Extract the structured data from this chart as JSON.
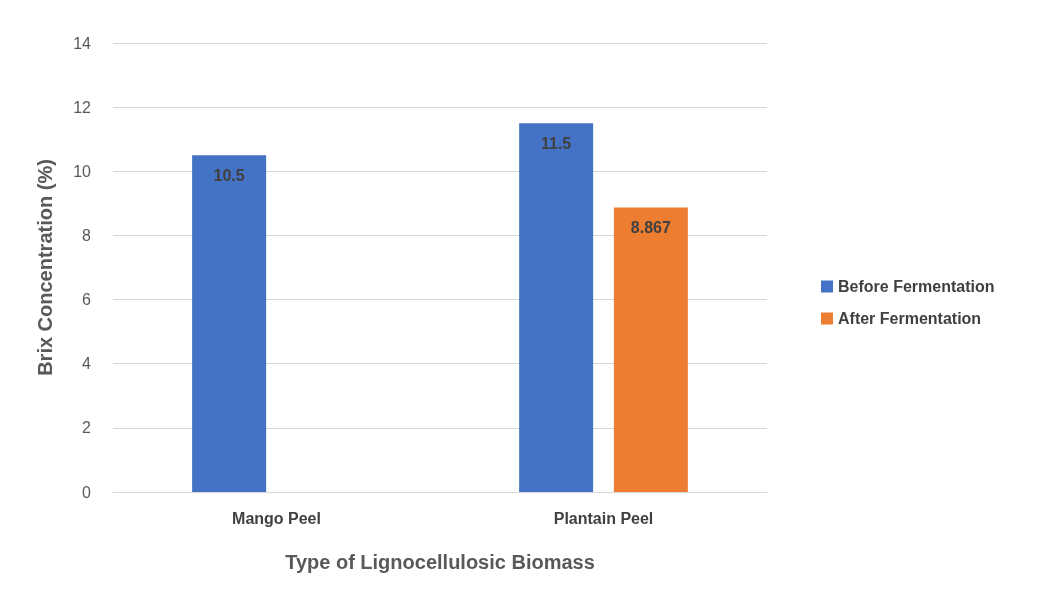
{
  "chart_data": {
    "type": "bar",
    "xlabel": "Type of Lignocellulosic Biomass",
    "ylabel": "Brix Concentration (%)",
    "categories": [
      "Mango Peel",
      "Plantain Peel"
    ],
    "series": [
      {
        "name": "Before Fermentation",
        "color": "#4472c4",
        "values": [
          10.5,
          11.5
        ]
      },
      {
        "name": "After Fermentation",
        "color": "#ed7d31",
        "values": [
          null,
          8.867
        ]
      }
    ],
    "ylim": [
      0,
      14
    ],
    "yticks": [
      0,
      2,
      4,
      6,
      8,
      10,
      12,
      14
    ],
    "grid": "y",
    "legend": "right",
    "data_labels": true
  }
}
